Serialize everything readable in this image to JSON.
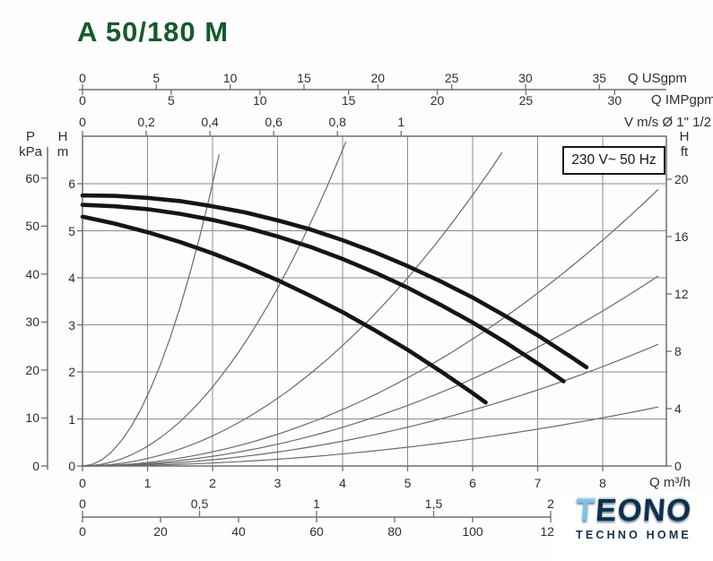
{
  "title": "A 50/180 M",
  "voltage_box": "230 V~ 50 Hz",
  "logo": {
    "name": "TEONO",
    "subtitle": "TECHNO HOME"
  },
  "colors": {
    "title_green": "#175a2a",
    "pump_curve": "#151515",
    "system_curve": "#6a6a6a",
    "grid": "#8c8c8c",
    "axis": "#6f6f6f",
    "logo_navy": "#10304b",
    "logo_light_blue": "#7fc2e7"
  },
  "chart_data": {
    "type": "line",
    "title": "A 50/180 M",
    "annotation": "230 V~ 50 Hz",
    "grid": true,
    "x_axis": {
      "label": "Q m³/h",
      "ticks": [
        0,
        1,
        2,
        3,
        4,
        5,
        6,
        7,
        8
      ],
      "range": [
        0,
        8.98
      ]
    },
    "y_axis": {
      "label": "H m",
      "ticks": [
        0,
        1,
        2,
        3,
        4,
        5,
        6
      ],
      "range": [
        0,
        7.0
      ]
    },
    "secondary_axes": {
      "top": [
        {
          "name": "us_gpm",
          "label": "Q USgpm",
          "ticks": [
            0,
            5,
            10,
            15,
            20,
            25,
            30,
            35
          ],
          "m3h_per_unit": 0.2271
        },
        {
          "name": "imp_gpm",
          "label": "Q IMPgpm",
          "ticks": [
            0,
            5,
            10,
            15,
            20,
            25,
            30
          ],
          "m3h_per_unit": 0.2728
        },
        {
          "name": "velocity",
          "label": "V m/s Ø 1\" 1/2",
          "tick_labels": [
            "0",
            "0,2",
            "0,4",
            "0,6",
            "0,8",
            "1"
          ],
          "tick_values": [
            0,
            0.2,
            0.4,
            0.6,
            0.8,
            1
          ],
          "m3h_per_unit": 4.9
        }
      ],
      "left": {
        "label_top": "P",
        "label_unit": "kPa",
        "ticks": [
          0,
          10,
          20,
          30,
          40,
          50,
          60
        ],
        "m_per_unit": 0.10197
      },
      "right": {
        "label_top": "H",
        "label_unit": "ft",
        "ticks": [
          0,
          4,
          8,
          12,
          16,
          20
        ],
        "m_per_unit": 0.3048
      },
      "bottom": [
        {
          "name": "liters_per_second",
          "tick_labels": [
            "0",
            "0,5",
            "1",
            "1,5",
            "2"
          ],
          "tick_values": [
            0,
            0.5,
            1,
            1.5,
            2
          ],
          "m3h_per_unit": 3.6
        },
        {
          "name": "liters_per_minute",
          "tick_labels": [
            "0",
            "20",
            "40",
            "60",
            "80",
            "100",
            "120"
          ],
          "tick_values": [
            0,
            20,
            40,
            60,
            80,
            100,
            120
          ],
          "m3h_per_unit": 0.06
        }
      ]
    },
    "series": [
      {
        "name": "pump-curve-speed-3",
        "points": [
          [
            0,
            5.75
          ],
          [
            0.5,
            5.74
          ],
          [
            1,
            5.7
          ],
          [
            1.5,
            5.63
          ],
          [
            2,
            5.52
          ],
          [
            2.5,
            5.39
          ],
          [
            3,
            5.22
          ],
          [
            3.5,
            5.03
          ],
          [
            4,
            4.8
          ],
          [
            4.5,
            4.54
          ],
          [
            5,
            4.25
          ],
          [
            5.5,
            3.93
          ],
          [
            6,
            3.58
          ],
          [
            6.5,
            3.19
          ],
          [
            7,
            2.78
          ],
          [
            7.5,
            2.33
          ],
          [
            7.75,
            2.1
          ]
        ]
      },
      {
        "name": "pump-curve-speed-2",
        "points": [
          [
            0,
            5.55
          ],
          [
            0.5,
            5.52
          ],
          [
            1,
            5.46
          ],
          [
            1.5,
            5.36
          ],
          [
            2,
            5.23
          ],
          [
            2.5,
            5.07
          ],
          [
            3,
            4.88
          ],
          [
            3.5,
            4.66
          ],
          [
            4,
            4.4
          ],
          [
            4.5,
            4.11
          ],
          [
            5,
            3.79
          ],
          [
            5.5,
            3.43
          ],
          [
            6,
            3.05
          ],
          [
            6.5,
            2.63
          ],
          [
            7,
            2.18
          ],
          [
            7.4,
            1.8
          ]
        ]
      },
      {
        "name": "pump-curve-speed-1",
        "points": [
          [
            0,
            5.3
          ],
          [
            0.5,
            5.15
          ],
          [
            1,
            4.97
          ],
          [
            1.5,
            4.76
          ],
          [
            2,
            4.52
          ],
          [
            2.5,
            4.25
          ],
          [
            3,
            3.95
          ],
          [
            3.5,
            3.62
          ],
          [
            4,
            3.27
          ],
          [
            4.5,
            2.88
          ],
          [
            5,
            2.47
          ],
          [
            5.5,
            2.02
          ],
          [
            6,
            1.55
          ],
          [
            6.2,
            1.35
          ]
        ]
      }
    ],
    "system_curves_k": [
      1.5,
      0.42,
      0.16,
      0.075,
      0.0515,
      0.033,
      0.016
    ]
  }
}
